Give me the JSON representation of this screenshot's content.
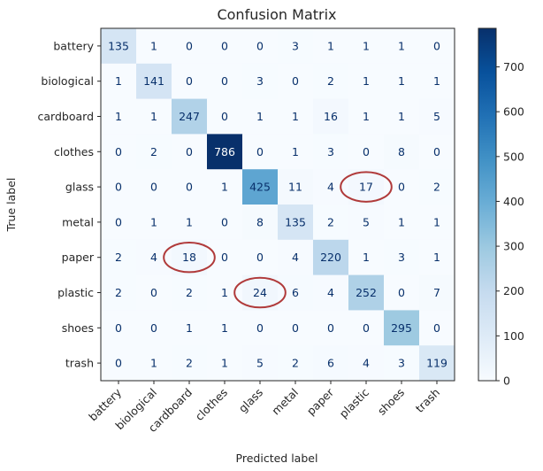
{
  "chart_data": {
    "type": "heatmap",
    "title": "Confusion Matrix",
    "xlabel": "Predicted label",
    "ylabel": "True label",
    "categories": [
      "battery",
      "biological",
      "cardboard",
      "clothes",
      "glass",
      "metal",
      "paper",
      "plastic",
      "shoes",
      "trash"
    ],
    "matrix": [
      [
        135,
        1,
        0,
        0,
        0,
        3,
        1,
        1,
        1,
        0
      ],
      [
        1,
        141,
        0,
        0,
        3,
        0,
        2,
        1,
        1,
        1
      ],
      [
        1,
        1,
        247,
        0,
        1,
        1,
        16,
        1,
        1,
        5
      ],
      [
        0,
        2,
        0,
        786,
        0,
        1,
        3,
        0,
        8,
        0
      ],
      [
        0,
        0,
        0,
        1,
        425,
        11,
        4,
        17,
        0,
        2
      ],
      [
        0,
        1,
        1,
        0,
        8,
        135,
        2,
        5,
        1,
        1
      ],
      [
        2,
        4,
        18,
        0,
        0,
        4,
        220,
        1,
        3,
        1
      ],
      [
        2,
        0,
        2,
        1,
        24,
        6,
        4,
        252,
        0,
        7
      ],
      [
        0,
        0,
        1,
        1,
        0,
        0,
        0,
        0,
        295,
        0
      ],
      [
        0,
        1,
        2,
        1,
        5,
        2,
        6,
        4,
        3,
        119
      ]
    ],
    "colorbar": {
      "min": 0,
      "max": 786,
      "ticks": [
        0,
        100,
        200,
        300,
        400,
        500,
        600,
        700
      ]
    },
    "colormap": "Blues",
    "highlighted_cells": [
      {
        "true": "glass",
        "predicted": "plastic"
      },
      {
        "true": "paper",
        "predicted": "cardboard"
      },
      {
        "true": "plastic",
        "predicted": "glass"
      }
    ],
    "highlight_color": "#b03a3a",
    "grid": false
  }
}
